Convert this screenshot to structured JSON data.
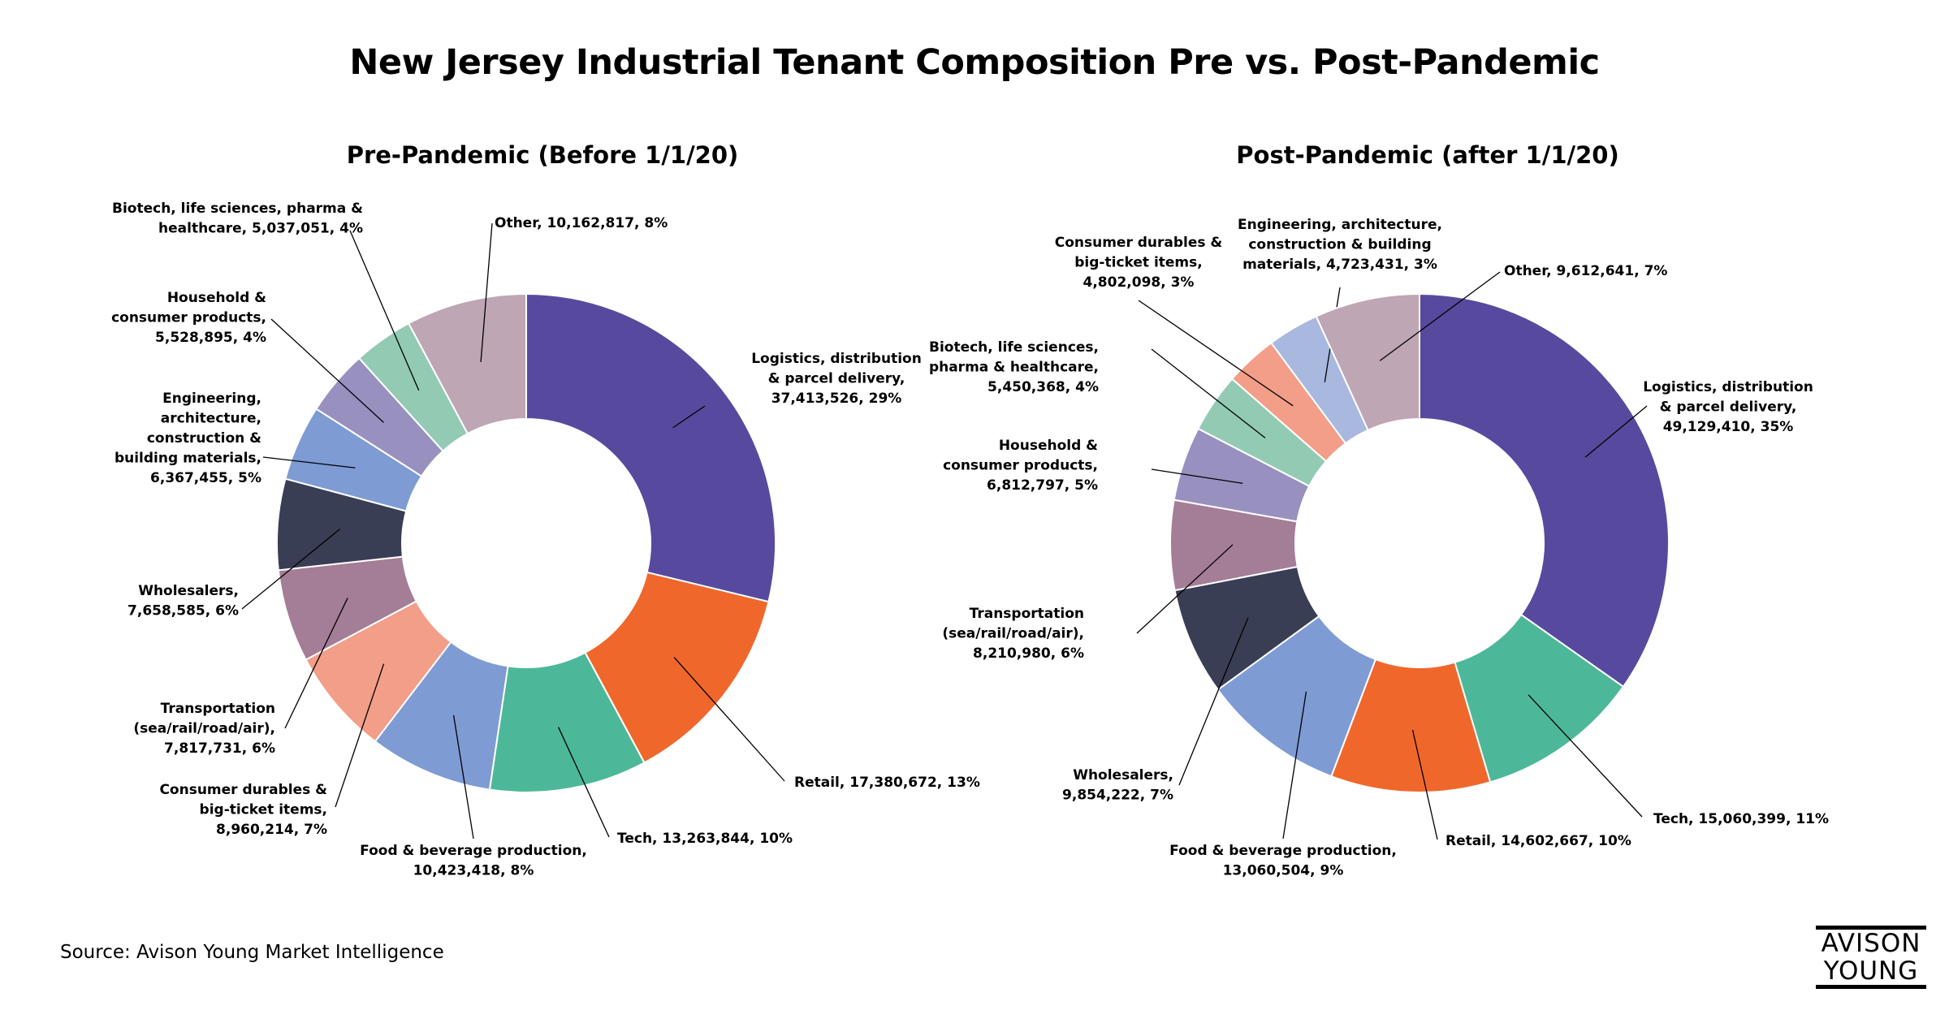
{
  "title": "New Jersey Industrial Tenant Composition Pre vs. Post-Pandemic",
  "source": "Source: Avison Young Market Intelligence",
  "logo": {
    "line1": "AVISON",
    "line2": "YOUNG"
  },
  "chart_data": [
    {
      "type": "pie",
      "donut": true,
      "title": "Pre-Pandemic (Before 1/1/20)",
      "slices": [
        {
          "label": [
            "Logistics, distribution",
            "& parcel delivery,",
            "37,413,526, 29%"
          ],
          "value": 37413526,
          "percent": 29,
          "color": "#574a9e"
        },
        {
          "label": [
            "Retail, 17,380,672, 13%"
          ],
          "value": 17380672,
          "percent": 13,
          "color": "#f0672c"
        },
        {
          "label": [
            "Tech, 13,263,844, 10%"
          ],
          "value": 13263844,
          "percent": 10,
          "color": "#4db899"
        },
        {
          "label": [
            "Food & beverage production,",
            "10,423,418, 8%"
          ],
          "value": 10423418,
          "percent": 8,
          "color": "#7f9bd4"
        },
        {
          "label": [
            "Consumer durables &",
            "big-ticket items,",
            "8,960,214, 7%"
          ],
          "value": 8960214,
          "percent": 7,
          "color": "#f29e88"
        },
        {
          "label": [
            "Transportation",
            "(sea/rail/road/air),",
            "7,817,731, 6%"
          ],
          "value": 7817731,
          "percent": 6,
          "color": "#a47d96"
        },
        {
          "label": [
            "Wholesalers,",
            "7,658,585, 6%"
          ],
          "value": 7658585,
          "percent": 6,
          "color": "#393e55"
        },
        {
          "label": [
            "Engineering,",
            "architecture,",
            "construction &",
            "building materials,",
            "6,367,455, 5%"
          ],
          "value": 6367455,
          "percent": 5,
          "color": "#7e9bd4"
        },
        {
          "label": [
            "Household &",
            "consumer products,",
            "5,528,895, 4%"
          ],
          "value": 5528895,
          "percent": 4,
          "color": "#9891bf"
        },
        {
          "label": [
            "Biotech, life sciences, pharma &",
            "healthcare, 5,037,051, 4%"
          ],
          "value": 5037051,
          "percent": 4,
          "color": "#93cab4"
        },
        {
          "label": [
            "Other, 10,162,817, 8%"
          ],
          "value": 10162817,
          "percent": 8,
          "color": "#bea6b4"
        }
      ]
    },
    {
      "type": "pie",
      "donut": true,
      "title": "Post-Pandemic (after 1/1/20)",
      "slices": [
        {
          "label": [
            "Logistics, distribution",
            "& parcel delivery,",
            "49,129,410, 35%"
          ],
          "value": 49129410,
          "percent": 35,
          "color": "#574a9e"
        },
        {
          "label": [
            "Tech, 15,060,399, 11%"
          ],
          "value": 15060399,
          "percent": 11,
          "color": "#4db899"
        },
        {
          "label": [
            "Retail, 14,602,667, 10%"
          ],
          "value": 14602667,
          "percent": 10,
          "color": "#f0672c"
        },
        {
          "label": [
            "Food & beverage production,",
            "13,060,504, 9%"
          ],
          "value": 13060504,
          "percent": 9,
          "color": "#7f9bd4"
        },
        {
          "label": [
            "Wholesalers,",
            "9,854,222, 7%"
          ],
          "value": 9854222,
          "percent": 7,
          "color": "#393e55"
        },
        {
          "label": [
            "Transportation",
            "(sea/rail/road/air),",
            "8,210,980, 6%"
          ],
          "value": 8210980,
          "percent": 6,
          "color": "#a47d96"
        },
        {
          "label": [
            "Household &",
            "consumer products,",
            "6,812,797, 5%"
          ],
          "value": 6812797,
          "percent": 5,
          "color": "#9891bf"
        },
        {
          "label": [
            "Biotech, life sciences,",
            "pharma & healthcare,",
            "5,450,368, 4%"
          ],
          "value": 5450368,
          "percent": 4,
          "color": "#93cab4"
        },
        {
          "label": [
            "Consumer durables &",
            "big-ticket items,",
            "4,802,098, 3%"
          ],
          "value": 4802098,
          "percent": 3,
          "color": "#f29e88"
        },
        {
          "label": [
            "Engineering, architecture,",
            "construction & building",
            "materials, 4,723,431, 3%"
          ],
          "value": 4723431,
          "percent": 3,
          "color": "#a8b8df"
        },
        {
          "label": [
            "Other, 9,612,641, 7%"
          ],
          "value": 9612641,
          "percent": 7,
          "color": "#bea6b4"
        }
      ]
    }
  ]
}
